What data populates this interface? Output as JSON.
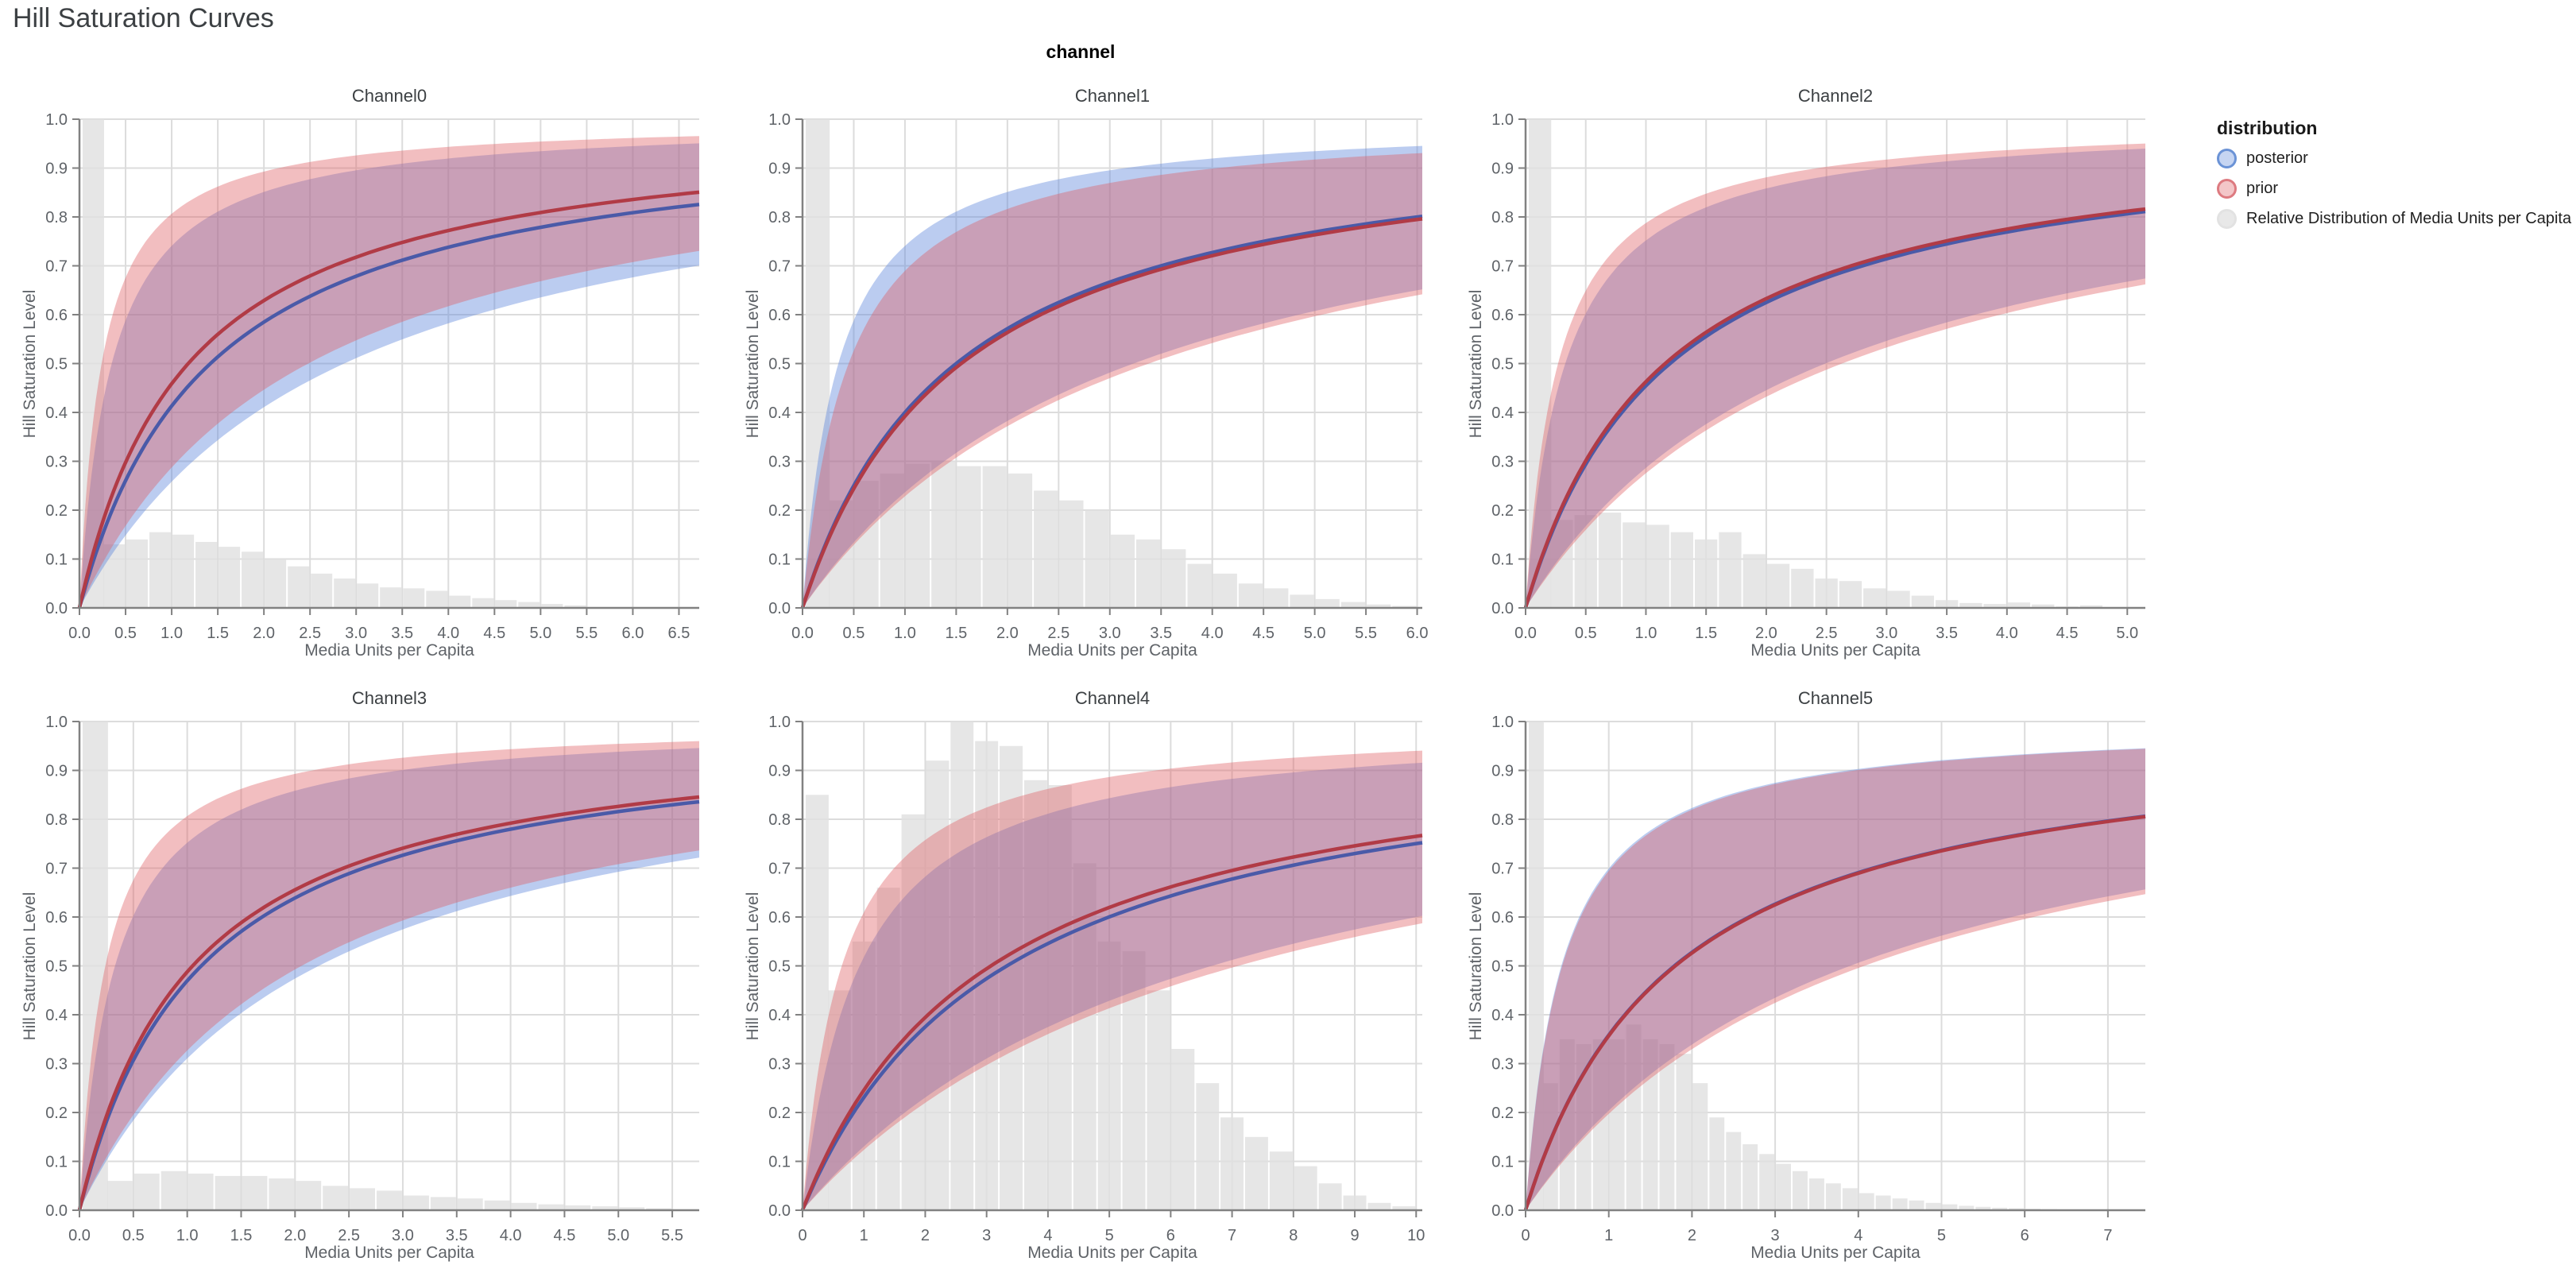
{
  "page": {
    "title": "Hill Saturation Curves",
    "facet_header": "channel"
  },
  "legend": {
    "title": "distribution",
    "items": [
      {
        "label": "posterior",
        "stroke": "#6b93d6",
        "fill": "rgba(93,134,219,0.35)"
      },
      {
        "label": "prior",
        "stroke": "#dd7a80",
        "fill": "rgba(222,92,98,0.35)"
      },
      {
        "label": "Relative Distribution of Media Units per Capita",
        "stroke": "#e2e2e2",
        "fill": "rgba(230,230,230,0.9)"
      }
    ]
  },
  "axes": {
    "y_label": "Hill Saturation Level",
    "x_label": "Media Units per Capita",
    "y_ticks": [
      "0.0",
      "0.1",
      "0.2",
      "0.3",
      "0.4",
      "0.5",
      "0.6",
      "0.7",
      "0.8",
      "0.9",
      "1.0"
    ]
  },
  "colors": {
    "posterior_line": "#4a5aa8",
    "prior_line": "#b13b46",
    "posterior_band": "rgba(93,134,219,0.42)",
    "prior_band": "rgba(222,92,98,0.40)",
    "histogram": "rgba(224,224,224,0.82)",
    "grid": "#dcdcdc",
    "axis": "#818181",
    "tick_label": "#5f6368"
  },
  "chart_data": [
    {
      "type": "line+area+histogram",
      "title": "Channel0",
      "x_ticks": [
        "0.0",
        "0.5",
        "1.0",
        "1.5",
        "2.0",
        "2.5",
        "3.0",
        "3.5",
        "4.0",
        "4.5",
        "5.0",
        "5.5",
        "6.0",
        "6.5"
      ],
      "x_domain": [
        0,
        6.72
      ],
      "y_domain": [
        0,
        1
      ],
      "series": [
        {
          "name": "posterior",
          "median_k": 1.42,
          "band_upper_k": 0.35,
          "band_lower_k": 2.87,
          "median_at_xmax": 0.83,
          "band_at_xmax": [
            0.7,
            0.95
          ]
        },
        {
          "name": "prior",
          "median_k": 1.18,
          "band_upper_k": 0.24,
          "band_lower_k": 2.48,
          "median_at_xmax": 0.85,
          "band_at_xmax": [
            0.73,
            0.965
          ]
        },
        {
          "name": "Relative Distribution of Media Units per Capita",
          "bin_width": 0.25,
          "heights": [
            1,
            0.13,
            0.14,
            0.155,
            0.15,
            0.135,
            0.125,
            0.115,
            0.1,
            0.085,
            0.07,
            0.06,
            0.05,
            0.042,
            0.04,
            0.035,
            0.025,
            0.02,
            0.016,
            0.012,
            0.008,
            0.005
          ]
        }
      ]
    },
    {
      "type": "line+area+histogram",
      "title": "Channel1",
      "x_ticks": [
        "0.0",
        "0.5",
        "1.0",
        "1.5",
        "2.0",
        "2.5",
        "3.0",
        "3.5",
        "4.0",
        "4.5",
        "5.0",
        "5.5",
        "6.0"
      ],
      "x_domain": [
        0,
        6.05
      ],
      "y_domain": [
        0,
        1
      ],
      "series": [
        {
          "name": "posterior",
          "median_k": 1.5,
          "band_upper_k": 0.35,
          "band_lower_k": 3.23,
          "median_at_xmax": 0.8,
          "band_at_xmax": [
            0.65,
            0.945
          ]
        },
        {
          "name": "prior",
          "median_k": 1.55,
          "band_upper_k": 0.45,
          "band_lower_k": 3.38,
          "median_at_xmax": 0.795,
          "band_at_xmax": [
            0.64,
            0.93
          ]
        },
        {
          "name": "Relative Distribution of Media Units per Capita",
          "bin_width": 0.25,
          "heights": [
            1,
            0.22,
            0.26,
            0.275,
            0.295,
            0.3,
            0.29,
            0.29,
            0.275,
            0.24,
            0.22,
            0.2,
            0.15,
            0.14,
            0.12,
            0.09,
            0.07,
            0.05,
            0.04,
            0.027,
            0.018,
            0.012,
            0.007,
            0.004
          ]
        }
      ]
    },
    {
      "type": "line+area+histogram",
      "title": "Channel2",
      "x_ticks": [
        "0.0",
        "0.5",
        "1.0",
        "1.5",
        "2.0",
        "2.5",
        "3.0",
        "3.5",
        "4.0",
        "4.5",
        "5.0"
      ],
      "x_domain": [
        0,
        5.15
      ],
      "y_domain": [
        0,
        1
      ],
      "series": [
        {
          "name": "posterior",
          "median_k": 1.2,
          "band_upper_k": 0.33,
          "band_lower_k": 2.49,
          "median_at_xmax": 0.81,
          "band_at_xmax": [
            0.675,
            0.94
          ]
        },
        {
          "name": "prior",
          "median_k": 1.16,
          "band_upper_k": 0.27,
          "band_lower_k": 2.63,
          "median_at_xmax": 0.815,
          "band_at_xmax": [
            0.66,
            0.95
          ]
        },
        {
          "name": "Relative Distribution of Media Units per Capita",
          "bin_width": 0.2,
          "heights": [
            1,
            0.18,
            0.19,
            0.195,
            0.175,
            0.17,
            0.155,
            0.14,
            0.155,
            0.11,
            0.09,
            0.08,
            0.06,
            0.055,
            0.04,
            0.035,
            0.025,
            0.016,
            0.01,
            0.008,
            0.011,
            0.007,
            0.003,
            0.005
          ]
        }
      ]
    },
    {
      "type": "line+area+histogram",
      "title": "Channel3",
      "x_ticks": [
        "0.0",
        "0.5",
        "1.0",
        "1.5",
        "2.0",
        "2.5",
        "3.0",
        "3.5",
        "4.0",
        "4.5",
        "5.0",
        "5.5"
      ],
      "x_domain": [
        0,
        5.75
      ],
      "y_domain": [
        0,
        1
      ],
      "series": [
        {
          "name": "posterior",
          "median_k": 1.13,
          "band_upper_k": 0.33,
          "band_lower_k": 2.22,
          "median_at_xmax": 0.835,
          "band_at_xmax": [
            0.72,
            0.945
          ]
        },
        {
          "name": "prior",
          "median_k": 1.05,
          "band_upper_k": 0.24,
          "band_lower_k": 2.06,
          "median_at_xmax": 0.845,
          "band_at_xmax": [
            0.735,
            0.96
          ]
        },
        {
          "name": "Relative Distribution of Media Units per Capita",
          "bin_width": 0.25,
          "heights": [
            1,
            0.06,
            0.075,
            0.08,
            0.075,
            0.07,
            0.07,
            0.065,
            0.06,
            0.05,
            0.045,
            0.04,
            0.03,
            0.027,
            0.024,
            0.02,
            0.015,
            0.012,
            0.01,
            0.008,
            0.006,
            0.004,
            0.002
          ]
        }
      ]
    },
    {
      "type": "line+area+histogram",
      "title": "Channel4",
      "x_ticks": [
        "0",
        "1",
        "2",
        "3",
        "4",
        "5",
        "6",
        "7",
        "8",
        "9",
        "10"
      ],
      "x_domain": [
        0,
        10.1
      ],
      "y_domain": [
        0,
        1
      ],
      "series": [
        {
          "name": "posterior",
          "median_k": 3.33,
          "band_upper_k": 0.93,
          "band_lower_k": 6.67,
          "median_at_xmax": 0.752,
          "band_at_xmax": [
            0.6,
            0.916
          ]
        },
        {
          "name": "prior",
          "median_k": 3.07,
          "band_upper_k": 0.64,
          "band_lower_k": 7.1,
          "median_at_xmax": 0.767,
          "band_at_xmax": [
            0.587,
            0.94
          ]
        },
        {
          "name": "Relative Distribution of Media Units per Capita",
          "bin_width": 0.4,
          "heights": [
            0.85,
            0.45,
            0.55,
            0.66,
            0.81,
            0.92,
            1,
            0.96,
            0.95,
            0.88,
            0.87,
            0.71,
            0.55,
            0.53,
            0.45,
            0.33,
            0.26,
            0.19,
            0.15,
            0.12,
            0.09,
            0.055,
            0.03,
            0.015,
            0.008
          ]
        }
      ]
    },
    {
      "type": "line+area+histogram",
      "title": "Channel5",
      "x_ticks": [
        "0",
        "1",
        "2",
        "3",
        "4",
        "5",
        "6",
        "7"
      ],
      "x_domain": [
        0,
        7.45
      ],
      "y_domain": [
        0,
        1
      ],
      "series": [
        {
          "name": "posterior",
          "median_k": 1.79,
          "band_upper_k": 0.43,
          "band_lower_k": 3.9,
          "median_at_xmax": 0.806,
          "band_at_xmax": [
            0.656,
            0.945
          ]
        },
        {
          "name": "prior",
          "median_k": 1.8,
          "band_upper_k": 0.44,
          "band_lower_k": 4.07,
          "median_at_xmax": 0.805,
          "band_at_xmax": [
            0.645,
            0.944
          ]
        },
        {
          "name": "Relative Distribution of Media Units per Capita",
          "bin_width": 0.2,
          "heights": [
            1,
            0.26,
            0.35,
            0.34,
            0.35,
            0.35,
            0.38,
            0.35,
            0.34,
            0.32,
            0.26,
            0.19,
            0.16,
            0.135,
            0.115,
            0.095,
            0.08,
            0.065,
            0.055,
            0.045,
            0.035,
            0.03,
            0.024,
            0.02,
            0.015,
            0.012,
            0.009,
            0.007,
            0.005,
            0.004,
            0.003,
            0.002
          ]
        }
      ]
    }
  ]
}
